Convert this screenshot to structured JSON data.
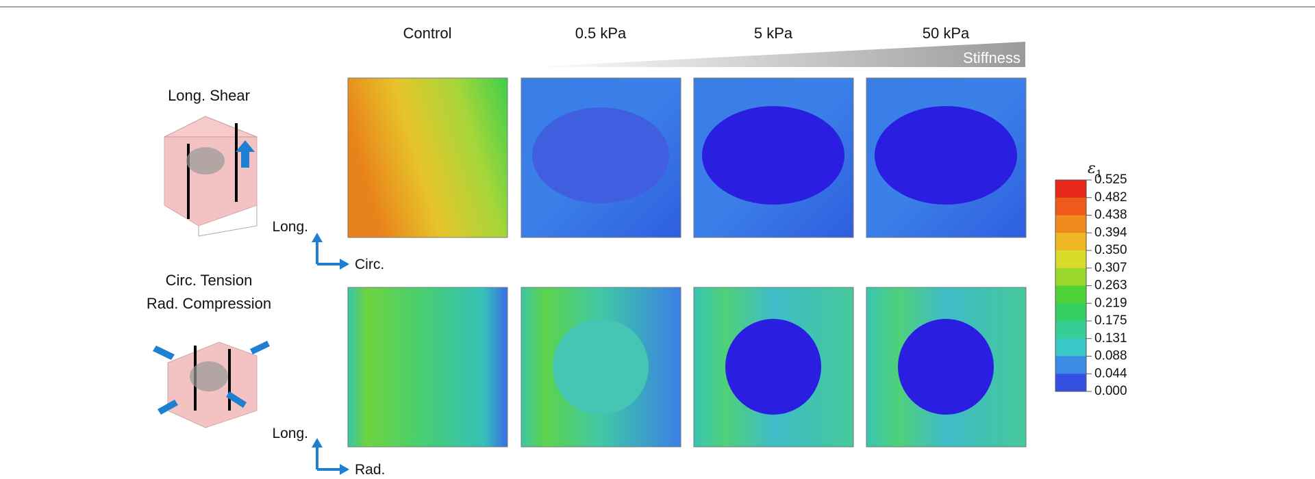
{
  "columns": [
    "Control",
    "0.5 kPa",
    "5 kPa",
    "50 kPa"
  ],
  "stiffness_label": "Stiffness",
  "rows": [
    {
      "label": [
        "Long. Shear"
      ],
      "axis_vertical": "Long.",
      "axis_horizontal": "Circ."
    },
    {
      "label": [
        "Circ. Tension",
        "Rad. Compression"
      ],
      "axis_vertical": "Long.",
      "axis_horizontal": "Rad."
    }
  ],
  "colorbar": {
    "title": "ε",
    "title_subscript": "1",
    "ticks": [
      "0.525",
      "0.482",
      "0.438",
      "0.394",
      "0.350",
      "0.307",
      "0.263",
      "0.219",
      "0.175",
      "0.131",
      "0.088",
      "0.044",
      "0.000"
    ]
  }
}
